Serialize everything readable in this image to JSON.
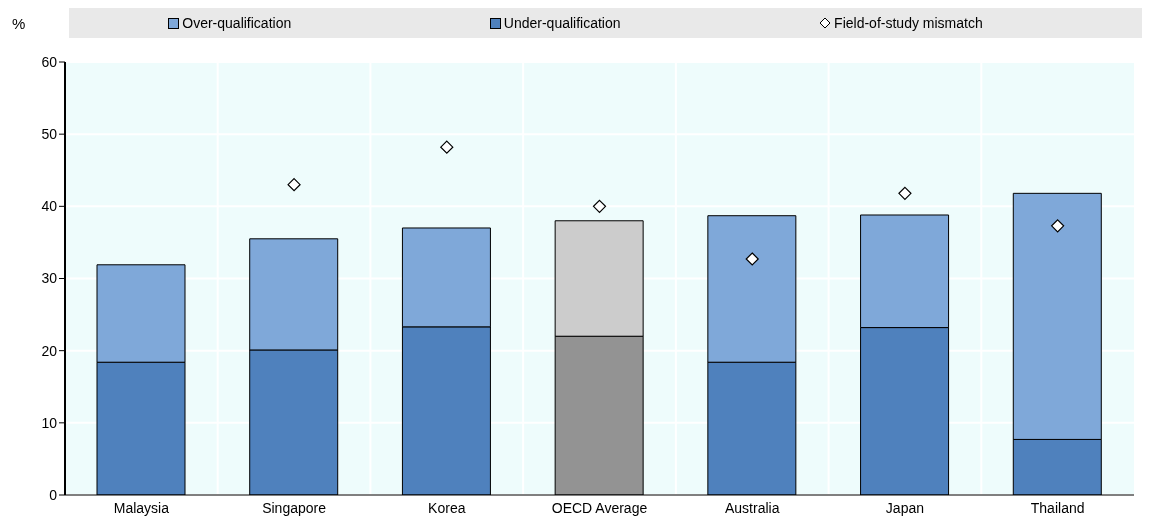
{
  "chart_data": {
    "type": "bar",
    "ylabel": "%",
    "categories": [
      "Malaysia",
      "Singapore",
      "Korea",
      "OECD Average",
      "Australia",
      "Japan",
      "Thailand"
    ],
    "stacked": true,
    "legend": "top",
    "grid": true,
    "marker": "diamond",
    "ylim": [
      0,
      60
    ],
    "yticks": [
      0,
      10,
      20,
      30,
      40,
      50,
      60
    ],
    "series": [
      {
        "name": "Under-qualification",
        "color": "#4f81bd",
        "colors": [
          "#4f81bd",
          "#4f81bd",
          "#4f81bd",
          "#939393",
          "#4f81bd",
          "#4f81bd",
          "#4f81bd"
        ],
        "values": [
          18.4,
          20.1,
          23.3,
          22,
          18.4,
          23.2,
          7.7
        ]
      },
      {
        "name": "Over-qualification",
        "color": "#7fa8d9",
        "colors": [
          "#7fa8d9",
          "#7fa8d9",
          "#7fa8d9",
          "#cccccc",
          "#7fa8d9",
          "#7fa8d9",
          "#7fa8d9"
        ],
        "values": [
          13.5,
          15.4,
          13.7,
          16,
          20.3,
          15.6,
          34.1
        ]
      },
      {
        "name": "Field-of-study mismatch",
        "type": "scatter",
        "color": "#ffffff",
        "values": [
          null,
          43,
          48.2,
          40,
          32.7,
          41.8,
          37.3
        ]
      }
    ]
  }
}
